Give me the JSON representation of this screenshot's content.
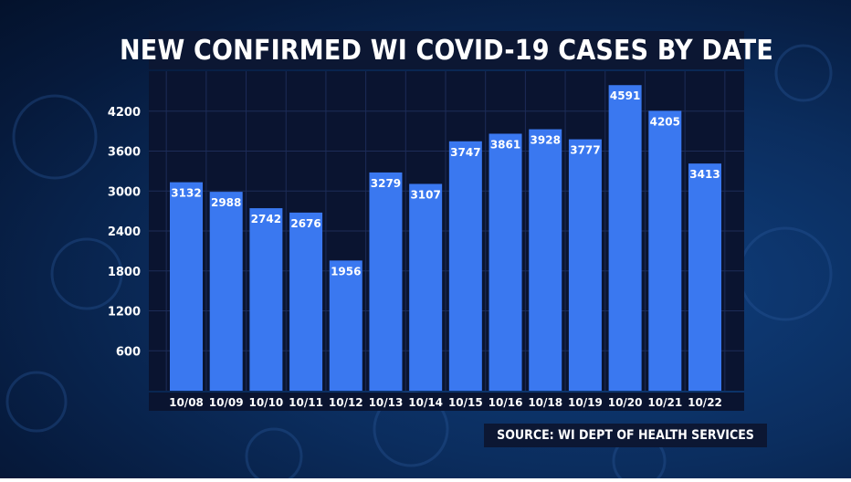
{
  "title": "NEW CONFIRMED WI COVID-19 CASES BY DATE",
  "source": "SOURCE: WI DEPT OF HEALTH SERVICES",
  "colors": {
    "bar": "#3a78f0",
    "plot_bg": "#0a1430",
    "grid": "#1d2c58",
    "text": "#ffffff"
  },
  "chart_data": {
    "type": "bar",
    "categories": [
      "10/08",
      "10/09",
      "10/10",
      "10/11",
      "10/12",
      "10/13",
      "10/14",
      "10/15",
      "10/16",
      "10/18",
      "10/19",
      "10/20",
      "10/21",
      "10/22"
    ],
    "values": [
      3132,
      2988,
      2742,
      2676,
      1956,
      3279,
      3107,
      3747,
      3861,
      3928,
      3777,
      4591,
      4205,
      3413
    ],
    "data_labels": [
      "3132",
      "2988",
      "2742",
      "2676",
      "1956",
      "3279",
      "3107",
      "3747",
      "3861",
      "3928",
      "3777",
      "4591",
      "4205",
      "3413"
    ],
    "yticks": [
      600,
      1200,
      1800,
      2400,
      3000,
      3600,
      4200
    ],
    "ytick_labels": [
      "600",
      "1200",
      "1800",
      "2400",
      "3000",
      "3600",
      "4200"
    ],
    "ylim": [
      0,
      4800
    ],
    "grid": true,
    "title": "NEW CONFIRMED WI COVID-19 CASES BY DATE",
    "xlabel": "",
    "ylabel": ""
  }
}
